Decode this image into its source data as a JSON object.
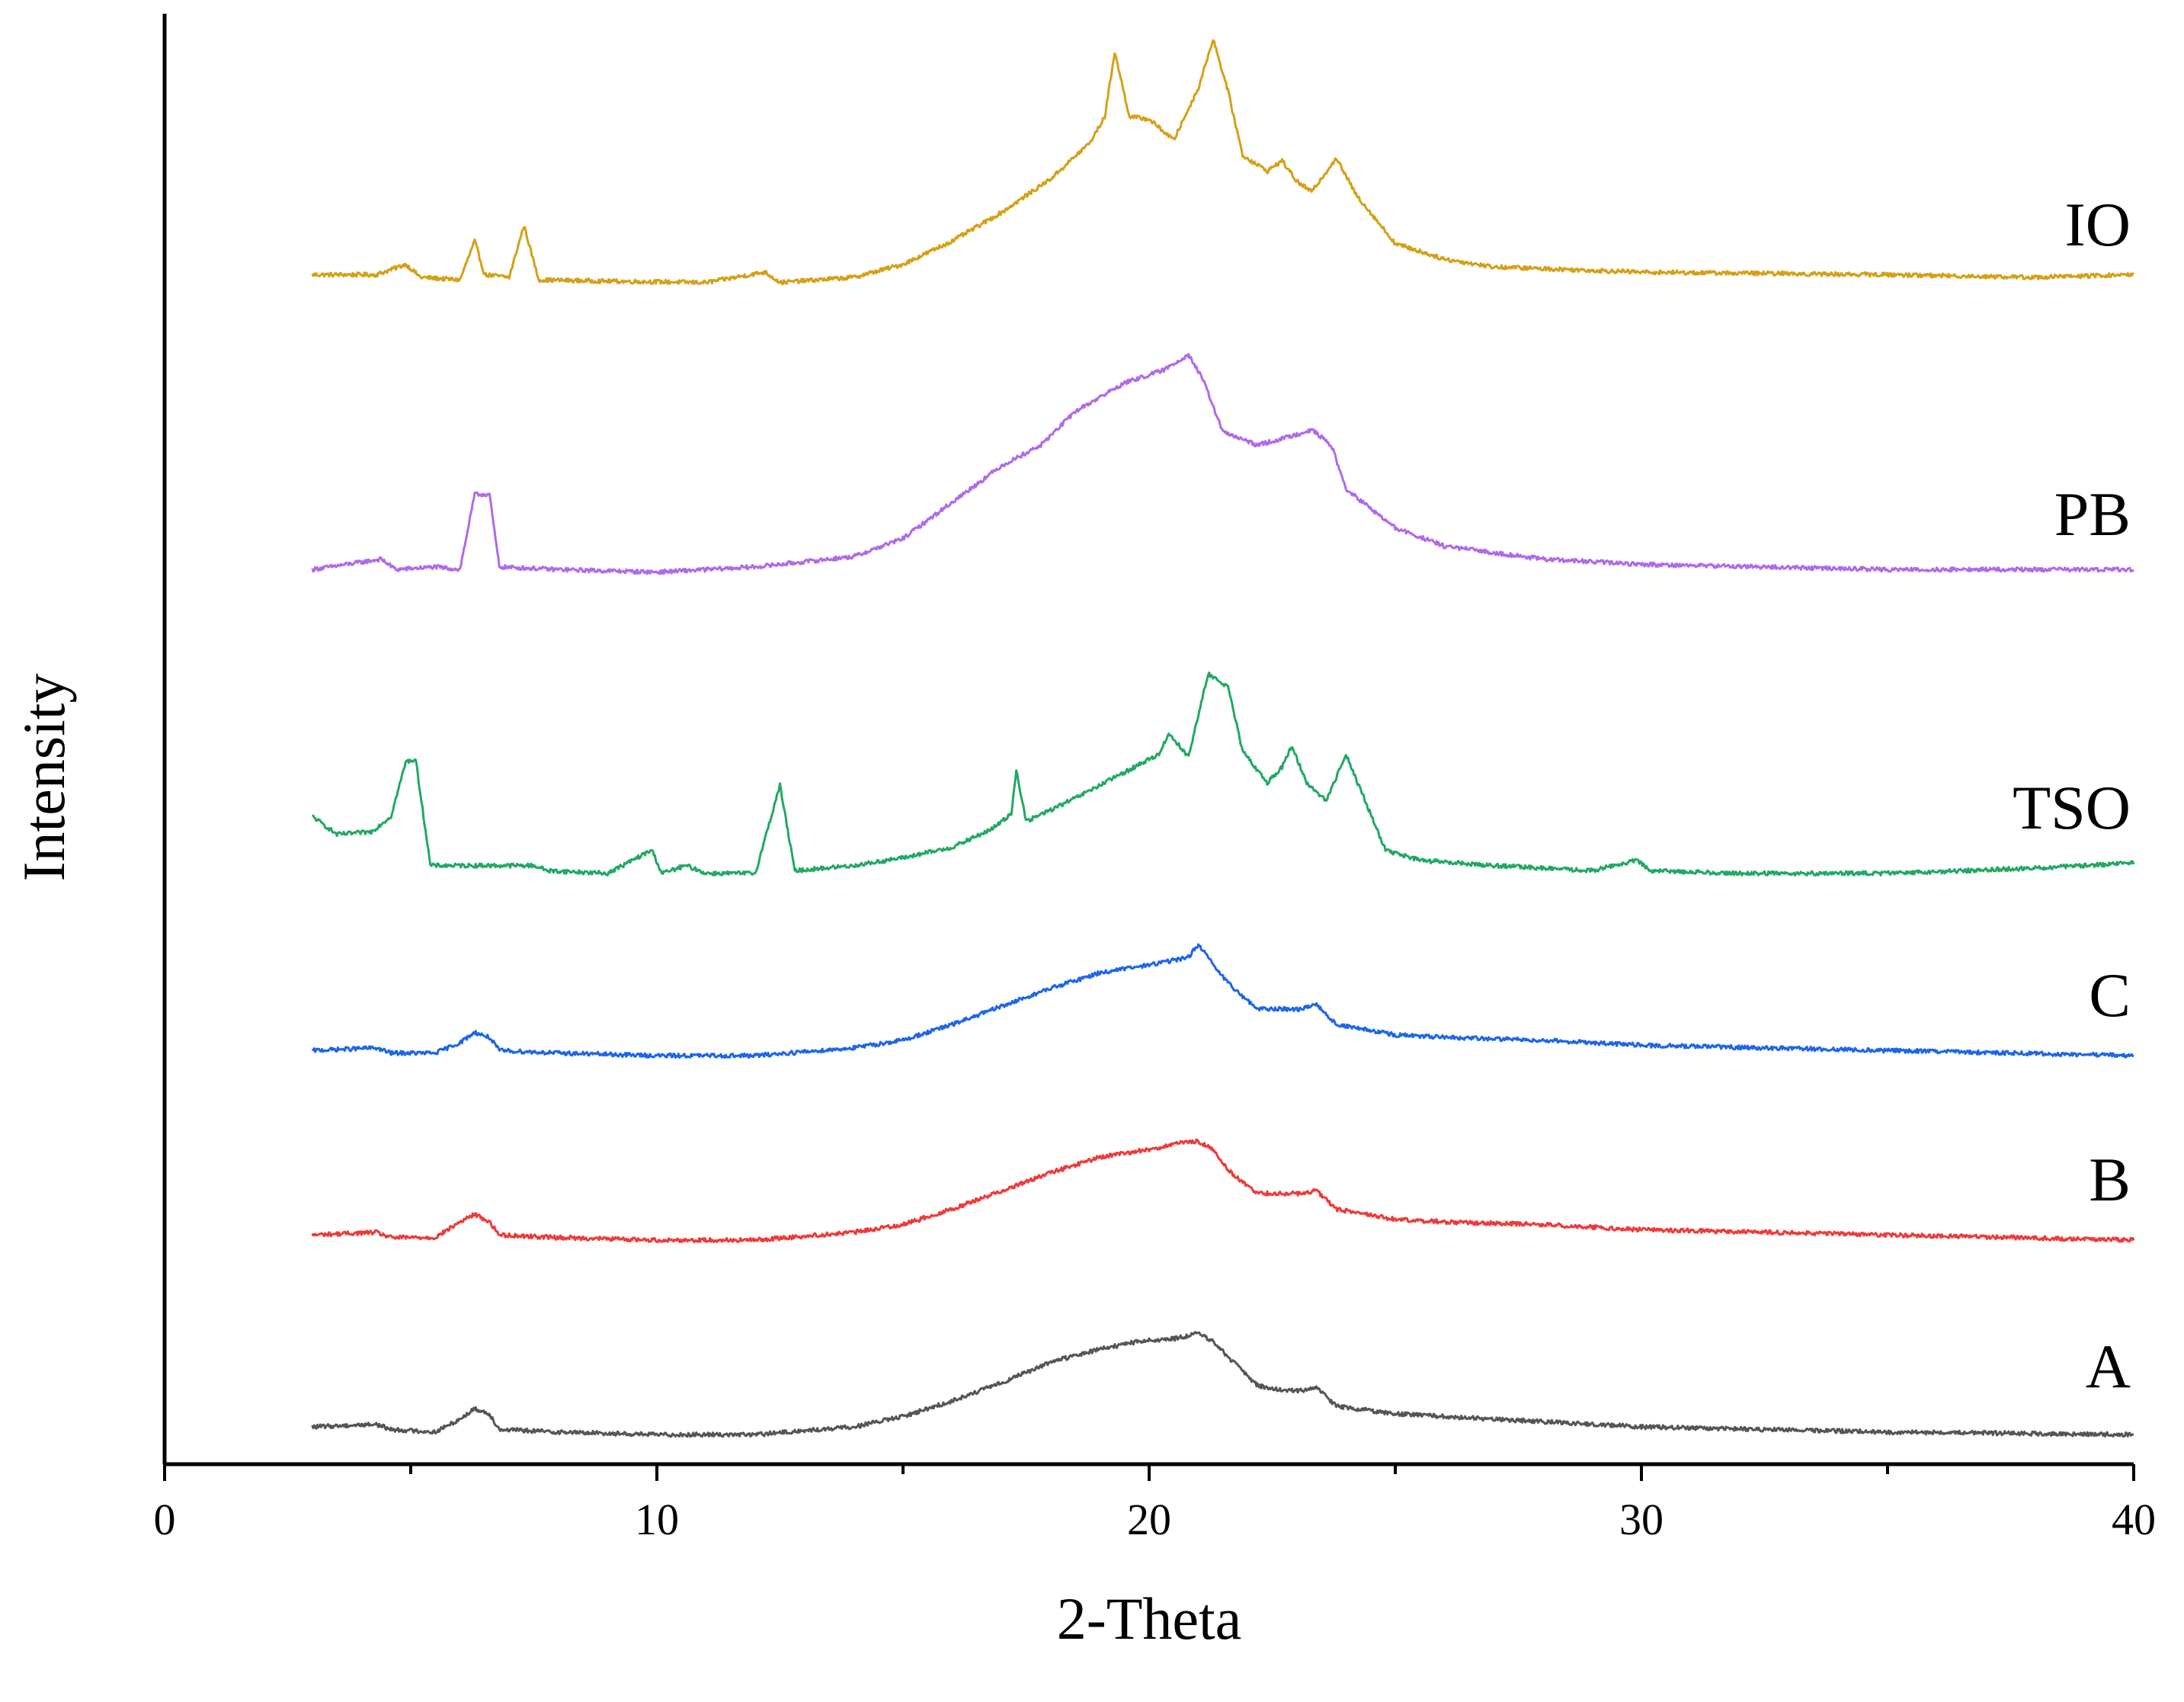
{
  "chart_data": {
    "type": "line",
    "xlabel": "2-Theta",
    "ylabel": "Intensity",
    "xlim": [
      0,
      40
    ],
    "x_ticks": [
      "0",
      "10",
      "20",
      "30",
      "40"
    ],
    "y_ticks_shown": false,
    "grid": false,
    "legend": "none (series labeled inline at right end of each curve)",
    "stacked_offset_traces": true,
    "series": [
      {
        "name": "IO",
        "color": "#d4a017",
        "points": [
          [
            3,
            8
          ],
          [
            4.3,
            8
          ],
          [
            4.9,
            16
          ],
          [
            5.2,
            6
          ],
          [
            6.0,
            4
          ],
          [
            6.3,
            34
          ],
          [
            6.5,
            8
          ],
          [
            7.0,
            6
          ],
          [
            7.3,
            46
          ],
          [
            7.6,
            4
          ],
          [
            9,
            3
          ],
          [
            11,
            2
          ],
          [
            12.2,
            10
          ],
          [
            12.5,
            2
          ],
          [
            14,
            6
          ],
          [
            15,
            16
          ],
          [
            16,
            34
          ],
          [
            17,
            56
          ],
          [
            18,
            82
          ],
          [
            18.8,
            110
          ],
          [
            19.1,
            130
          ],
          [
            19.3,
            180
          ],
          [
            19.6,
            130
          ],
          [
            20.0,
            128
          ],
          [
            20.5,
            112
          ],
          [
            21.0,
            152
          ],
          [
            21.3,
            190
          ],
          [
            21.6,
            150
          ],
          [
            21.9,
            100
          ],
          [
            22.4,
            88
          ],
          [
            22.7,
            96
          ],
          [
            23.0,
            80
          ],
          [
            23.3,
            72
          ],
          [
            23.8,
            98
          ],
          [
            24.2,
            70
          ],
          [
            25,
            32
          ],
          [
            26,
            20
          ],
          [
            27,
            14
          ],
          [
            30,
            10
          ],
          [
            35,
            8
          ],
          [
            38,
            6
          ],
          [
            40,
            8
          ]
        ]
      },
      {
        "name": "PB",
        "color": "#b06ae8",
        "points": [
          [
            3,
            4
          ],
          [
            4.4,
            12
          ],
          [
            4.7,
            4
          ],
          [
            5.5,
            6
          ],
          [
            6.0,
            4
          ],
          [
            6.3,
            62
          ],
          [
            6.6,
            62
          ],
          [
            6.8,
            6
          ],
          [
            8,
            4
          ],
          [
            10,
            2
          ],
          [
            12,
            6
          ],
          [
            14,
            14
          ],
          [
            15,
            28
          ],
          [
            16,
            56
          ],
          [
            17,
            84
          ],
          [
            17.8,
            100
          ],
          [
            18.5,
            126
          ],
          [
            19.5,
            148
          ],
          [
            20.3,
            158
          ],
          [
            20.8,
            170
          ],
          [
            21.1,
            150
          ],
          [
            21.5,
            110
          ],
          [
            22.2,
            100
          ],
          [
            22.8,
            106
          ],
          [
            23.3,
            112
          ],
          [
            23.7,
            100
          ],
          [
            24.0,
            66
          ],
          [
            25,
            36
          ],
          [
            26,
            22
          ],
          [
            28,
            12
          ],
          [
            30,
            8
          ],
          [
            35,
            4
          ],
          [
            40,
            4
          ]
        ]
      },
      {
        "name": "TSO",
        "color": "#22a864",
        "points": [
          [
            3,
            40
          ],
          [
            3.5,
            26
          ],
          [
            4.2,
            28
          ],
          [
            4.6,
            40
          ],
          [
            4.9,
            82
          ],
          [
            5.1,
            84
          ],
          [
            5.4,
            2
          ],
          [
            7.5,
            2
          ],
          [
            7.8,
            -2
          ],
          [
            9,
            -4
          ],
          [
            9.9,
            14
          ],
          [
            10.1,
            -4
          ],
          [
            10.6,
            2
          ],
          [
            11,
            -4
          ],
          [
            12,
            -4
          ],
          [
            12.5,
            64
          ],
          [
            12.8,
            -2
          ],
          [
            14,
            2
          ],
          [
            15,
            8
          ],
          [
            16,
            16
          ],
          [
            16.8,
            30
          ],
          [
            17.2,
            42
          ],
          [
            17.3,
            76
          ],
          [
            17.5,
            36
          ],
          [
            18.5,
            54
          ],
          [
            19.5,
            74
          ],
          [
            20.2,
            88
          ],
          [
            20.4,
            104
          ],
          [
            20.8,
            86
          ],
          [
            21.2,
            150
          ],
          [
            21.6,
            140
          ],
          [
            21.9,
            90
          ],
          [
            22.4,
            66
          ],
          [
            22.7,
            78
          ],
          [
            22.9,
            94
          ],
          [
            23.2,
            66
          ],
          [
            23.6,
            52
          ],
          [
            24.0,
            88
          ],
          [
            24.3,
            60
          ],
          [
            24.8,
            14
          ],
          [
            25.5,
            6
          ],
          [
            27,
            2
          ],
          [
            29,
            -2
          ],
          [
            29.9,
            6
          ],
          [
            30.2,
            -2
          ],
          [
            32,
            -4
          ],
          [
            35,
            -4
          ],
          [
            38,
            0
          ],
          [
            40,
            4
          ]
        ]
      },
      {
        "name": "C",
        "color": "#1e66e6",
        "points": [
          [
            3,
            4
          ],
          [
            4.3,
            6
          ],
          [
            4.6,
            2
          ],
          [
            5.5,
            2
          ],
          [
            6.0,
            10
          ],
          [
            6.3,
            18
          ],
          [
            6.6,
            14
          ],
          [
            6.8,
            4
          ],
          [
            8,
            2
          ],
          [
            10,
            0
          ],
          [
            12,
            0
          ],
          [
            14,
            6
          ],
          [
            15,
            12
          ],
          [
            16,
            24
          ],
          [
            17,
            38
          ],
          [
            18,
            52
          ],
          [
            19,
            64
          ],
          [
            20,
            70
          ],
          [
            20.8,
            76
          ],
          [
            21.0,
            86
          ],
          [
            21.3,
            70
          ],
          [
            21.6,
            56
          ],
          [
            22.2,
            36
          ],
          [
            22.7,
            36
          ],
          [
            23.1,
            36
          ],
          [
            23.4,
            40
          ],
          [
            23.8,
            24
          ],
          [
            25,
            16
          ],
          [
            26,
            14
          ],
          [
            28,
            12
          ],
          [
            30,
            8
          ],
          [
            35,
            4
          ],
          [
            40,
            0
          ]
        ]
      },
      {
        "name": "B",
        "color": "#ee3a3a",
        "points": [
          [
            3,
            4
          ],
          [
            4.3,
            6
          ],
          [
            4.6,
            2
          ],
          [
            5.5,
            2
          ],
          [
            6.0,
            14
          ],
          [
            6.3,
            20
          ],
          [
            6.6,
            14
          ],
          [
            6.8,
            4
          ],
          [
            8,
            2
          ],
          [
            10,
            0
          ],
          [
            12,
            0
          ],
          [
            14,
            6
          ],
          [
            15,
            12
          ],
          [
            16,
            24
          ],
          [
            17,
            38
          ],
          [
            18,
            52
          ],
          [
            19,
            64
          ],
          [
            20,
            70
          ],
          [
            20.8,
            76
          ],
          [
            21.0,
            76
          ],
          [
            21.3,
            70
          ],
          [
            21.6,
            54
          ],
          [
            22.2,
            36
          ],
          [
            22.7,
            36
          ],
          [
            23.1,
            36
          ],
          [
            23.4,
            38
          ],
          [
            23.8,
            24
          ],
          [
            25,
            16
          ],
          [
            26,
            14
          ],
          [
            28,
            12
          ],
          [
            30,
            8
          ],
          [
            35,
            4
          ],
          [
            40,
            0
          ]
        ]
      },
      {
        "name": "A",
        "color": "#555555",
        "points": [
          [
            3,
            0
          ],
          [
            4.3,
            2
          ],
          [
            4.6,
            -2
          ],
          [
            5.5,
            -4
          ],
          [
            6.0,
            6
          ],
          [
            6.3,
            14
          ],
          [
            6.6,
            10
          ],
          [
            6.8,
            -2
          ],
          [
            8,
            -4
          ],
          [
            10,
            -6
          ],
          [
            12,
            -6
          ],
          [
            14,
            0
          ],
          [
            15,
            8
          ],
          [
            16,
            20
          ],
          [
            17,
            34
          ],
          [
            18,
            50
          ],
          [
            19,
            60
          ],
          [
            19.8,
            66
          ],
          [
            20.5,
            68
          ],
          [
            21.0,
            72
          ],
          [
            21.3,
            66
          ],
          [
            21.6,
            54
          ],
          [
            22.2,
            32
          ],
          [
            22.7,
            28
          ],
          [
            23.1,
            28
          ],
          [
            23.4,
            30
          ],
          [
            23.8,
            16
          ],
          [
            25,
            10
          ],
          [
            26,
            8
          ],
          [
            28,
            4
          ],
          [
            30,
            0
          ],
          [
            35,
            -4
          ],
          [
            40,
            -6
          ]
        ]
      }
    ]
  }
}
